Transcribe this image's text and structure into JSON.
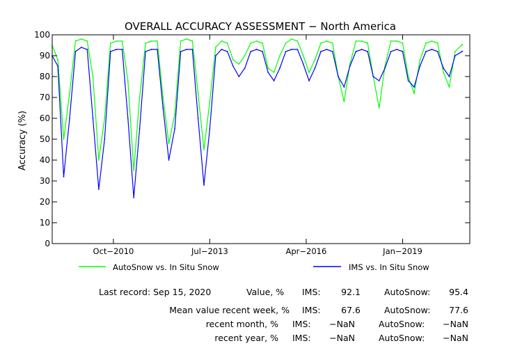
{
  "chart_data": {
    "type": "line",
    "title": "OVERALL ACCURACY ASSESSMENT − North America",
    "ylabel": "Accuracy (%)",
    "xlabel": "",
    "ylim": [
      0,
      100
    ],
    "y_ticks": [
      "0",
      "10",
      "20",
      "30",
      "40",
      "50",
      "60",
      "70",
      "80",
      "90",
      "100"
    ],
    "x_ticks": [
      {
        "label": "Oct−2010",
        "date": "2010-10-01"
      },
      {
        "label": "Jul−2013",
        "date": "2013-07-01"
      },
      {
        "label": "Apr−2016",
        "date": "2016-04-01"
      },
      {
        "label": "Jan−2019",
        "date": "2019-01-01"
      }
    ],
    "xlim": [
      "2009-01-01",
      "2020-12-01"
    ],
    "grid": false,
    "series": [
      {
        "name": "AutoSnow vs. In Situ Snow",
        "color": "#00ff00",
        "points": [
          [
            "2009-01-01",
            95
          ],
          [
            "2009-03-01",
            88
          ],
          [
            "2009-05-01",
            50
          ],
          [
            "2009-07-01",
            72
          ],
          [
            "2009-09-01",
            97
          ],
          [
            "2009-11-01",
            98
          ],
          [
            "2010-01-01",
            97
          ],
          [
            "2010-03-01",
            80
          ],
          [
            "2010-05-01",
            40
          ],
          [
            "2010-07-01",
            60
          ],
          [
            "2010-09-01",
            96
          ],
          [
            "2010-11-01",
            97
          ],
          [
            "2011-01-01",
            97
          ],
          [
            "2011-03-01",
            78
          ],
          [
            "2011-05-01",
            35
          ],
          [
            "2011-07-01",
            70
          ],
          [
            "2011-09-01",
            96
          ],
          [
            "2011-11-01",
            97
          ],
          [
            "2012-01-01",
            97
          ],
          [
            "2012-03-01",
            70
          ],
          [
            "2012-05-01",
            48
          ],
          [
            "2012-07-01",
            62
          ],
          [
            "2012-09-01",
            97
          ],
          [
            "2012-11-01",
            98
          ],
          [
            "2013-01-01",
            97
          ],
          [
            "2013-03-01",
            72
          ],
          [
            "2013-05-01",
            45
          ],
          [
            "2013-07-01",
            68
          ],
          [
            "2013-09-01",
            94
          ],
          [
            "2013-11-01",
            97
          ],
          [
            "2014-01-01",
            96
          ],
          [
            "2014-03-01",
            88
          ],
          [
            "2014-05-01",
            86
          ],
          [
            "2014-07-01",
            90
          ],
          [
            "2014-09-01",
            96
          ],
          [
            "2014-11-01",
            97
          ],
          [
            "2015-01-01",
            96
          ],
          [
            "2015-03-01",
            84
          ],
          [
            "2015-05-01",
            82
          ],
          [
            "2015-07-01",
            90
          ],
          [
            "2015-09-01",
            96
          ],
          [
            "2015-11-01",
            98
          ],
          [
            "2016-01-01",
            97
          ],
          [
            "2016-03-01",
            90
          ],
          [
            "2016-05-01",
            82
          ],
          [
            "2016-07-01",
            88
          ],
          [
            "2016-09-01",
            96
          ],
          [
            "2016-11-01",
            97
          ],
          [
            "2017-01-01",
            96
          ],
          [
            "2017-03-01",
            80
          ],
          [
            "2017-05-01",
            68
          ],
          [
            "2017-07-01",
            86
          ],
          [
            "2017-09-01",
            97
          ],
          [
            "2017-11-01",
            97
          ],
          [
            "2018-01-01",
            96
          ],
          [
            "2018-03-01",
            80
          ],
          [
            "2018-05-01",
            65
          ],
          [
            "2018-07-01",
            85
          ],
          [
            "2018-09-01",
            97
          ],
          [
            "2018-11-01",
            97
          ],
          [
            "2019-01-01",
            96
          ],
          [
            "2019-03-01",
            80
          ],
          [
            "2019-05-01",
            72
          ],
          [
            "2019-07-01",
            88
          ],
          [
            "2019-09-01",
            96
          ],
          [
            "2019-11-01",
            97
          ],
          [
            "2020-01-01",
            96
          ],
          [
            "2020-03-01",
            82
          ],
          [
            "2020-05-01",
            75
          ],
          [
            "2020-07-01",
            92
          ],
          [
            "2020-09-15",
            95.4
          ]
        ]
      },
      {
        "name": "IMS vs. In Situ Snow",
        "color": "#0000ff",
        "points": [
          [
            "2009-01-01",
            90
          ],
          [
            "2009-03-01",
            85
          ],
          [
            "2009-05-01",
            32
          ],
          [
            "2009-07-01",
            60
          ],
          [
            "2009-09-01",
            92
          ],
          [
            "2009-11-01",
            94
          ],
          [
            "2010-01-01",
            93
          ],
          [
            "2010-03-01",
            60
          ],
          [
            "2010-05-01",
            26
          ],
          [
            "2010-07-01",
            50
          ],
          [
            "2010-09-01",
            92
          ],
          [
            "2010-11-01",
            93
          ],
          [
            "2011-01-01",
            93
          ],
          [
            "2011-03-01",
            60
          ],
          [
            "2011-05-01",
            22
          ],
          [
            "2011-07-01",
            55
          ],
          [
            "2011-09-01",
            92
          ],
          [
            "2011-11-01",
            93
          ],
          [
            "2012-01-01",
            93
          ],
          [
            "2012-03-01",
            65
          ],
          [
            "2012-05-01",
            40
          ],
          [
            "2012-07-01",
            55
          ],
          [
            "2012-09-01",
            92
          ],
          [
            "2012-11-01",
            93
          ],
          [
            "2013-01-01",
            93
          ],
          [
            "2013-03-01",
            60
          ],
          [
            "2013-05-01",
            28
          ],
          [
            "2013-07-01",
            55
          ],
          [
            "2013-09-01",
            90
          ],
          [
            "2013-11-01",
            93
          ],
          [
            "2014-01-01",
            92
          ],
          [
            "2014-03-01",
            85
          ],
          [
            "2014-05-01",
            80
          ],
          [
            "2014-07-01",
            84
          ],
          [
            "2014-09-01",
            92
          ],
          [
            "2014-11-01",
            93
          ],
          [
            "2015-01-01",
            92
          ],
          [
            "2015-03-01",
            82
          ],
          [
            "2015-05-01",
            78
          ],
          [
            "2015-07-01",
            84
          ],
          [
            "2015-09-01",
            92
          ],
          [
            "2015-11-01",
            93
          ],
          [
            "2016-01-01",
            93
          ],
          [
            "2016-03-01",
            86
          ],
          [
            "2016-05-01",
            78
          ],
          [
            "2016-07-01",
            84
          ],
          [
            "2016-09-01",
            92
          ],
          [
            "2016-11-01",
            93
          ],
          [
            "2017-01-01",
            92
          ],
          [
            "2017-03-01",
            80
          ],
          [
            "2017-05-01",
            75
          ],
          [
            "2017-07-01",
            85
          ],
          [
            "2017-09-01",
            92
          ],
          [
            "2017-11-01",
            93
          ],
          [
            "2018-01-01",
            92
          ],
          [
            "2018-03-01",
            80
          ],
          [
            "2018-05-01",
            78
          ],
          [
            "2018-07-01",
            84
          ],
          [
            "2018-09-01",
            92
          ],
          [
            "2018-11-01",
            93
          ],
          [
            "2019-01-01",
            92
          ],
          [
            "2019-03-01",
            78
          ],
          [
            "2019-05-01",
            75
          ],
          [
            "2019-07-01",
            85
          ],
          [
            "2019-09-01",
            92
          ],
          [
            "2019-11-01",
            93
          ],
          [
            "2020-01-01",
            92
          ],
          [
            "2020-03-01",
            84
          ],
          [
            "2020-05-01",
            80
          ],
          [
            "2020-07-01",
            90
          ],
          [
            "2020-09-15",
            92.1
          ]
        ]
      }
    ]
  },
  "stats": {
    "last_record_label": "Last record: Sep 15, 2020",
    "value_label": "Value, %",
    "ims_label": "IMS:",
    "ims_value": "92.1",
    "autosnow_label": "AutoSnow:",
    "autosnow_value": "95.4",
    "week_label": "Mean value recent week, %",
    "week_ims": "67.6",
    "week_autosnow": "77.6",
    "month_label": "recent month, %",
    "month_ims": "−NaN",
    "month_autosnow": "−NaN",
    "year_label": "recent year, %",
    "year_ims": "−NaN",
    "year_autosnow": "−NaN"
  }
}
